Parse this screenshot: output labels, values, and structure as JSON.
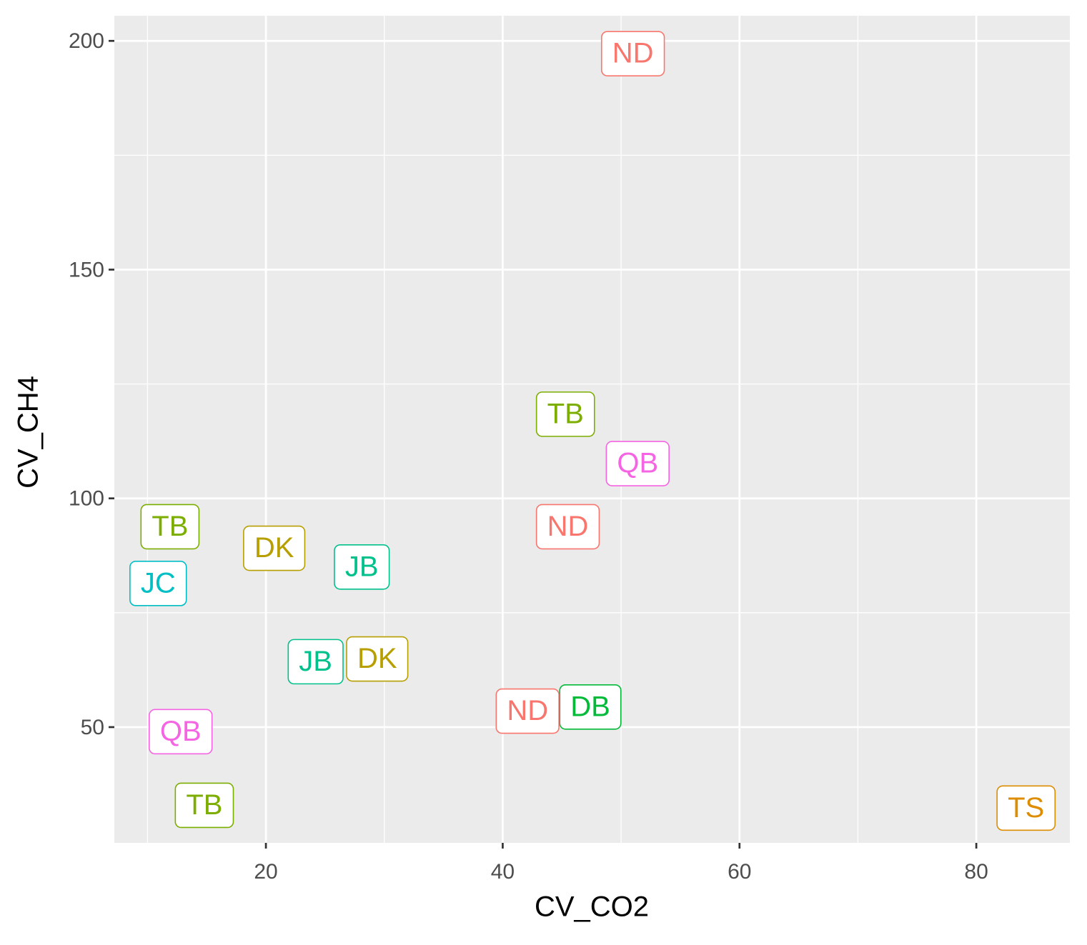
{
  "chart_data": {
    "type": "label-scatter",
    "x_label": "CV_CO2",
    "y_label": "CV_CH4",
    "xlim": [
      7.2,
      87.9
    ],
    "ylim": [
      24.7,
      205.5
    ],
    "xticks": [
      20,
      40,
      60,
      80
    ],
    "yticks": [
      50,
      100,
      150,
      200
    ],
    "x_minor_grid": [
      10,
      30,
      50,
      70
    ],
    "y_minor_grid": [
      75,
      125,
      175
    ],
    "grid": true,
    "series": [
      {
        "name": "DB",
        "color": "#00BA38",
        "x": [
          47.4
        ],
        "values": [
          54.4
        ]
      },
      {
        "name": "JB",
        "color": "#00C08B",
        "x": [
          28.1,
          24.2
        ],
        "values": [
          85.0,
          64.3
        ]
      },
      {
        "name": "DK",
        "color": "#B79F00",
        "x": [
          20.7,
          29.4
        ],
        "values": [
          89.1,
          64.9
        ]
      },
      {
        "name": "ND",
        "color": "#F8766D",
        "x": [
          51.0,
          45.5,
          42.1
        ],
        "values": [
          197.2,
          93.8,
          53.5
        ]
      },
      {
        "name": "JC",
        "color": "#00BFC4",
        "x": [
          10.9
        ],
        "values": [
          81.4
        ]
      },
      {
        "name": "QB",
        "color": "#F564E3",
        "x": [
          51.4,
          12.8
        ],
        "values": [
          107.6,
          49.0
        ]
      },
      {
        "name": "TB",
        "color": "#7CAE00",
        "x": [
          45.3,
          11.9,
          14.8
        ],
        "values": [
          118.4,
          93.8,
          32.9
        ]
      },
      {
        "name": "TS",
        "color": "#DE8C00",
        "x": [
          84.2
        ],
        "values": [
          32.3
        ]
      }
    ]
  }
}
